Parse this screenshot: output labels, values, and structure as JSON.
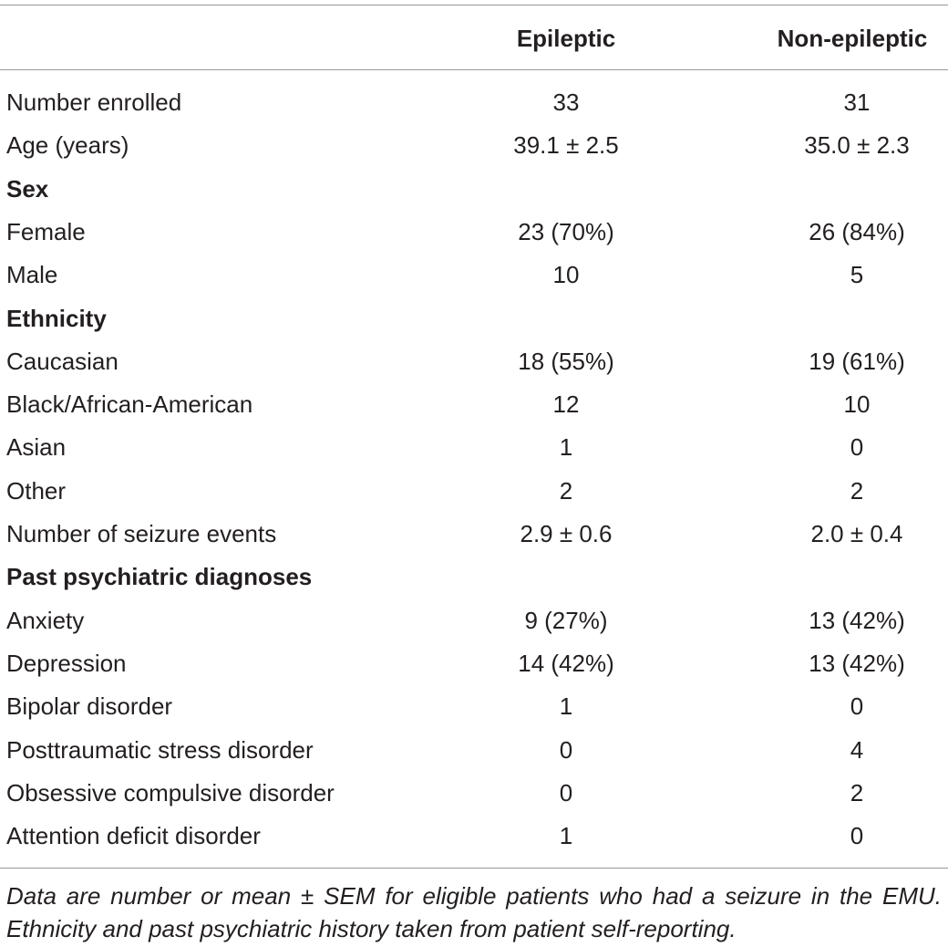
{
  "table": {
    "header": [
      "Epileptic",
      "Non-epileptic"
    ],
    "rows": [
      [
        "Number enrolled",
        "33",
        "31"
      ],
      [
        "Age (years)",
        "39.1 ± 2.5",
        "35.0 ± 2.3"
      ],
      [
        "Sex"
      ],
      [
        "Female",
        "23 (70%)",
        "26 (84%)"
      ],
      [
        "Male",
        "10",
        "5"
      ],
      [
        "Ethnicity"
      ],
      [
        "Caucasian",
        "18 (55%)",
        "19 (61%)"
      ],
      [
        "Black/African-American",
        "12",
        "10"
      ],
      [
        "Asian",
        "1",
        "0"
      ],
      [
        "Other",
        "2",
        "2"
      ],
      [
        "Number of seizure events",
        "2.9 ± 0.6",
        "2.0 ± 0.4"
      ],
      [
        "Past psychiatric diagnoses"
      ],
      [
        "Anxiety",
        "9 (27%)",
        "13 (42%)"
      ],
      [
        "Depression",
        "14 (42%)",
        "13 (42%)"
      ],
      [
        "Bipolar disorder",
        "1",
        "0"
      ],
      [
        "Posttraumatic stress disorder",
        "0",
        "4"
      ],
      [
        "Obsessive compulsive disorder",
        "0",
        "2"
      ],
      [
        "Attention deficit disorder",
        "1",
        "0"
      ]
    ],
    "footnote": "Data are number or mean ± SEM for eligible patients who had a seizure in the EMU. Ethnicity and past psychiatric history taken from patient self-reporting."
  }
}
